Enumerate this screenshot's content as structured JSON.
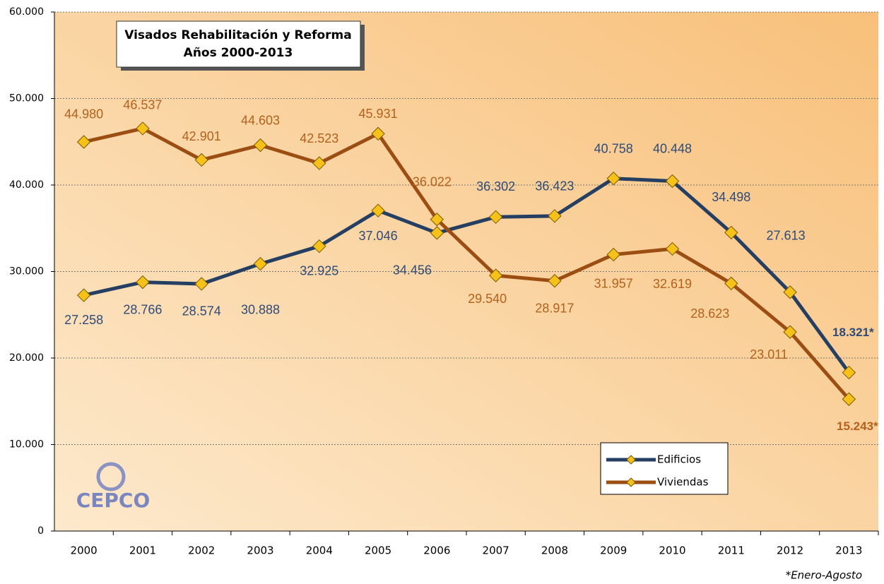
{
  "chart_data": {
    "type": "line",
    "title": "Visados Rehabilitación y Reforma",
    "subtitle": "Años 2000-2013",
    "footnote": "*Enero-Agosto",
    "logo": "CEPCO",
    "categories": [
      "2000",
      "2001",
      "2002",
      "2003",
      "2004",
      "2005",
      "2006",
      "2007",
      "2008",
      "2009",
      "2010",
      "2011",
      "2012",
      "2013"
    ],
    "series": [
      {
        "name": "Edificios",
        "color": "#253f63",
        "label_color": "#2e4a78",
        "values": [
          27258,
          28766,
          28574,
          30888,
          32925,
          37046,
          34456,
          36302,
          36423,
          40758,
          40448,
          34498,
          27613,
          18321
        ],
        "value_labels": [
          "27.258",
          "28.766",
          "28.574",
          "30.888",
          "32.925",
          "37.046",
          "34.456",
          "36.302",
          "36.423",
          "40.758",
          "40.448",
          "34.498",
          "27.613",
          "18.321*"
        ]
      },
      {
        "name": "Viviendas",
        "color": "#9c4e12",
        "label_color": "#b5611c",
        "values": [
          44980,
          46537,
          42901,
          44603,
          42523,
          45931,
          36022,
          29540,
          28917,
          31957,
          32619,
          28623,
          23011,
          15243
        ],
        "value_labels": [
          "44.980",
          "46.537",
          "42.901",
          "44.603",
          "42.523",
          "45.931",
          "36.022",
          "29.540",
          "28.917",
          "31.957",
          "32.619",
          "28.623",
          "23.011",
          "15.243*"
        ]
      }
    ],
    "marker_color": "#f6c21a",
    "ylim": [
      0,
      60000
    ],
    "yticks": [
      0,
      {
        "value": 10000,
        "label": "10.000"
      },
      {
        "value": 20000,
        "label": "20.000"
      },
      {
        "value": 30000,
        "label": "30.000"
      },
      {
        "value": 40000,
        "label": "40.000"
      },
      {
        "value": 50000,
        "label": "50.000"
      },
      {
        "value": 60000,
        "label": "60.000"
      }
    ],
    "grid": true,
    "legend": "lower right"
  }
}
